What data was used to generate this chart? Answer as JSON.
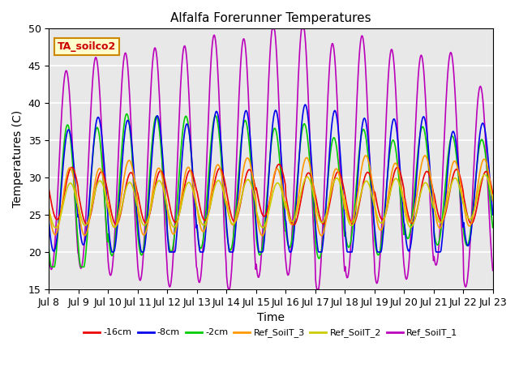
{
  "title": "Alfalfa Forerunner Temperatures",
  "xlabel": "Time",
  "ylabel": "Temperatures (C)",
  "ylim": [
    15,
    50
  ],
  "xlim": [
    0,
    15
  ],
  "annotation": "TA_soilco2",
  "annotation_color": "#cc0000",
  "annotation_bg": "#ffffcc",
  "annotation_edge": "#cc8800",
  "series_colors": {
    "Ref_SoilT_1": "#bb00bb",
    "-2cm": "#00cc00",
    "-8cm": "#0000ee",
    "-16cm": "#ee0000",
    "Ref_SoilT_3": "#ff9900",
    "Ref_SoilT_2": "#cccc00"
  },
  "x_tick_labels": [
    "Jul 8",
    "Jul 9",
    "Jul 10",
    "Jul 11",
    "Jul 12",
    "Jul 13",
    "Jul 14",
    "Jul 15",
    "Jul 16",
    "Jul 17",
    "Jul 18",
    "Jul 19",
    "Jul 20",
    "Jul 21",
    "Jul 22",
    "Jul 23"
  ],
  "plot_bg": "#e8e8e8",
  "grid_color": "#ffffff",
  "legend_order": [
    "-16cm",
    "-8cm",
    "-2cm",
    "Ref_SoilT_3",
    "Ref_SoilT_2",
    "Ref_SoilT_1"
  ]
}
